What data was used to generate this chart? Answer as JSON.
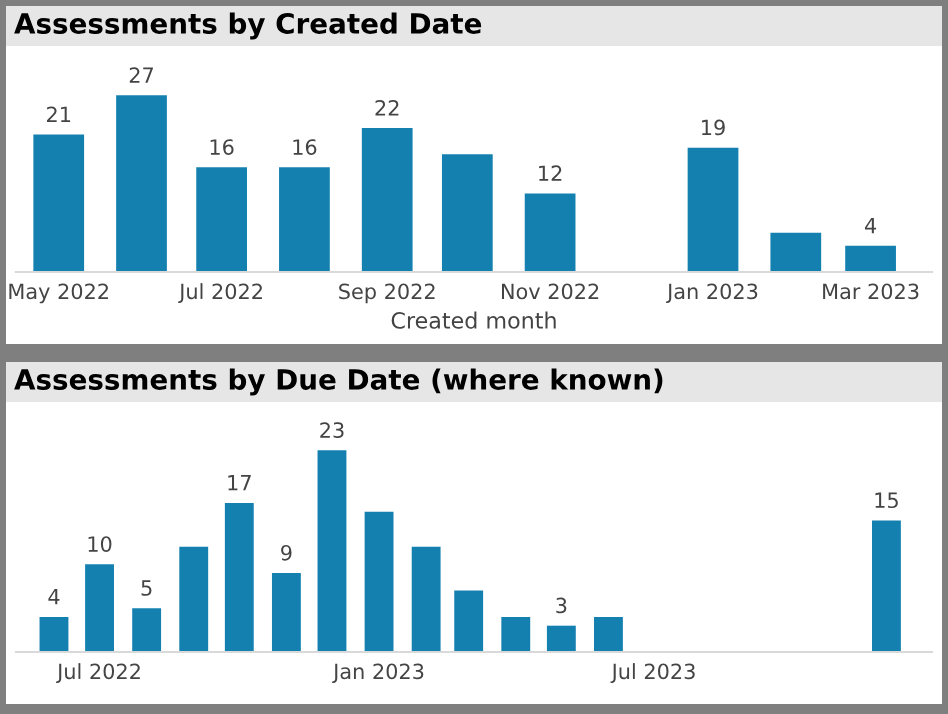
{
  "chart_data": [
    {
      "type": "bar",
      "title": "Assessments by Created Date",
      "xlabel": "Created month",
      "color": "#1380b0",
      "x": [
        "2022-05",
        "2022-06",
        "2022-07",
        "2022-08",
        "2022-09",
        "2022-10",
        "2022-11",
        "2023-01",
        "2023-02",
        "2023-03"
      ],
      "values": [
        21,
        27,
        16,
        16,
        22,
        18,
        12,
        19,
        6,
        4
      ],
      "value_labels": [
        "21",
        "27",
        "16",
        "16",
        "22",
        null,
        "12",
        "19",
        null,
        "4"
      ],
      "xlim": [
        "2022-04-15",
        "2023-03-24"
      ],
      "xticks": [
        {
          "value": "2022-05",
          "label": "May 2022"
        },
        {
          "value": "2022-07",
          "label": "Jul 2022"
        },
        {
          "value": "2022-09",
          "label": "Sep 2022"
        },
        {
          "value": "2022-11",
          "label": "Nov 2022"
        },
        {
          "value": "2023-01",
          "label": "Jan 2023"
        },
        {
          "value": "2023-03",
          "label": "Mar 2023"
        }
      ],
      "tick_labels": "x",
      "grid": false,
      "legend": false
    },
    {
      "type": "bar",
      "title": "Assessments by Due Date (where known)",
      "color": "#1380b0",
      "x": [
        "2022-06",
        "2022-07",
        "2022-08",
        "2022-09",
        "2022-10",
        "2022-11",
        "2022-12",
        "2023-01",
        "2023-02",
        "2023-03",
        "2023-04",
        "2023-05",
        "2023-06",
        "2023-12"
      ],
      "values": [
        4,
        10,
        5,
        12,
        17,
        9,
        23,
        16,
        12,
        7,
        4,
        3,
        4,
        15
      ],
      "value_labels": [
        "4",
        "10",
        "5",
        null,
        "17",
        "9",
        "23",
        null,
        null,
        null,
        null,
        "3",
        null,
        "15"
      ],
      "xlim": [
        "2022-05-07",
        "2023-12-31"
      ],
      "xticks": [
        {
          "value": "2022-07",
          "label": "Jul 2022"
        },
        {
          "value": "2023-01",
          "label": "Jan 2023"
        },
        {
          "value": "2023-07",
          "label": "Jul 2023"
        }
      ],
      "tick_labels": "x",
      "grid": false,
      "legend": false
    }
  ]
}
